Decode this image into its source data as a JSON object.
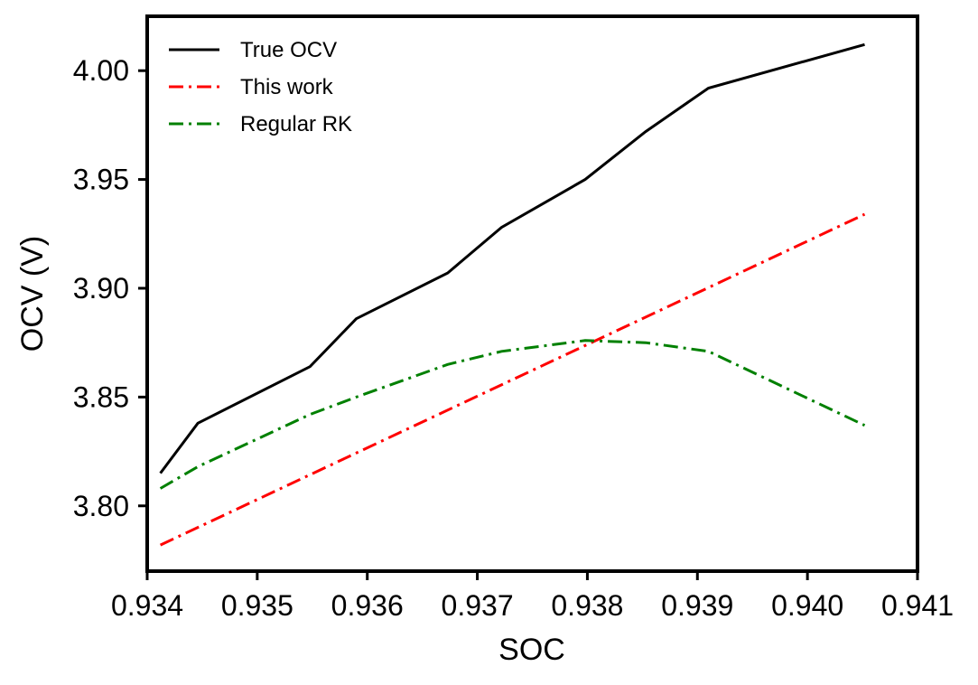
{
  "chart_data": {
    "type": "line",
    "title": "",
    "xlabel": "SOC",
    "ylabel": "OCV (V)",
    "xlim": [
      0.934,
      0.941
    ],
    "ylim": [
      3.77,
      4.025
    ],
    "x_ticks": [
      0.934,
      0.935,
      0.936,
      0.937,
      0.938,
      0.939,
      0.94,
      0.941
    ],
    "x_tick_labels": [
      "0.934",
      "0.935",
      "0.936",
      "0.937",
      "0.938",
      "0.939",
      "0.940",
      "0.941"
    ],
    "y_ticks": [
      3.8,
      3.85,
      3.9,
      3.95,
      4.0
    ],
    "y_tick_labels": [
      "3.80",
      "3.85",
      "3.90",
      "3.95",
      "4.00"
    ],
    "grid": false,
    "legend_position": "top-left",
    "series": [
      {
        "name": "True OCV",
        "color": "#000000",
        "line_style": "solid",
        "x": [
          0.93412,
          0.93446,
          0.93548,
          0.9359,
          0.93673,
          0.93722,
          0.93798,
          0.93853,
          0.9391,
          0.94052
        ],
        "y": [
          3.815,
          3.838,
          3.864,
          3.886,
          3.907,
          3.928,
          3.95,
          3.972,
          3.992,
          4.012
        ]
      },
      {
        "name": "This work",
        "color": "#ff0000",
        "line_style": "dashdot",
        "x": [
          0.93412,
          0.94052
        ],
        "y": [
          3.782,
          3.934
        ]
      },
      {
        "name": "Regular RK",
        "color": "#008000",
        "line_style": "dashdot",
        "x": [
          0.93412,
          0.93446,
          0.93548,
          0.9359,
          0.93673,
          0.93722,
          0.93798,
          0.93853,
          0.9391,
          0.94052
        ],
        "y": [
          3.808,
          3.818,
          3.842,
          3.85,
          3.865,
          3.871,
          3.876,
          3.875,
          3.871,
          3.837
        ]
      }
    ]
  }
}
